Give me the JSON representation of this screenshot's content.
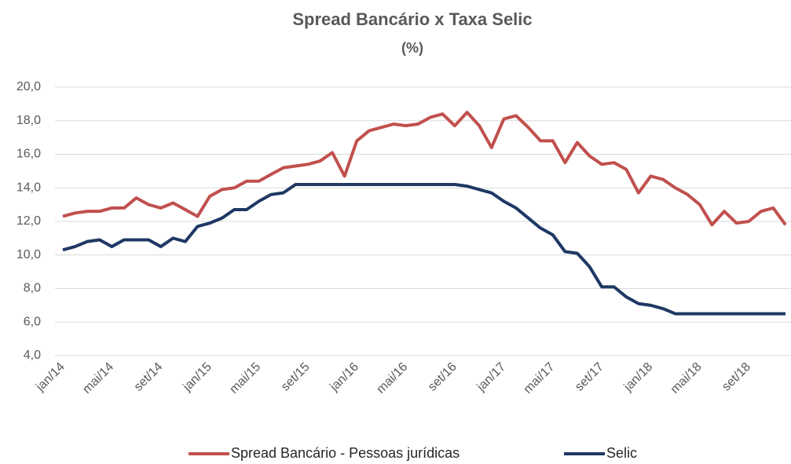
{
  "chart_data": {
    "type": "line",
    "title": "Spread Bancário x Taxa Selic",
    "subtitle": "(%)",
    "categories": [
      "jan/14",
      null,
      null,
      null,
      "mai/14",
      null,
      null,
      null,
      "set/14",
      null,
      null,
      null,
      "jan/15",
      null,
      null,
      null,
      "mai/15",
      null,
      null,
      null,
      "set/15",
      null,
      null,
      null,
      "jan/16",
      null,
      null,
      null,
      "mai/16",
      null,
      null,
      null,
      "set/16",
      null,
      null,
      null,
      "jan/17",
      null,
      null,
      null,
      "mai/17",
      null,
      null,
      null,
      "set/17",
      null,
      null,
      null,
      "jan/18",
      null,
      null,
      null,
      "mai/18",
      null,
      null,
      null,
      "set/18",
      null,
      null,
      null
    ],
    "series": [
      {
        "name": "Spread Bancário - Pessoas jurídicas",
        "color": "#c0504d",
        "values": [
          12.3,
          12.5,
          12.6,
          12.6,
          12.8,
          12.8,
          13.4,
          13.0,
          12.8,
          13.1,
          12.7,
          12.3,
          13.5,
          13.9,
          14.0,
          14.4,
          14.4,
          14.8,
          15.2,
          15.3,
          15.4,
          15.6,
          16.1,
          14.7,
          16.8,
          17.4,
          17.6,
          17.8,
          17.7,
          17.8,
          18.2,
          18.4,
          17.7,
          18.5,
          17.7,
          16.4,
          18.1,
          18.3,
          17.6,
          16.8,
          16.8,
          15.5,
          16.7,
          15.9,
          15.4,
          15.5,
          15.1,
          13.7,
          14.7,
          14.5,
          14.0,
          13.6,
          13.0,
          11.8,
          12.6,
          11.9,
          12.0,
          12.6,
          12.8,
          11.8
        ]
      },
      {
        "name": "Selic",
        "color": "#1f3864",
        "values": [
          10.3,
          10.5,
          10.8,
          10.9,
          10.5,
          10.9,
          10.9,
          10.9,
          10.5,
          11.0,
          10.8,
          11.7,
          11.9,
          12.2,
          12.7,
          12.7,
          13.2,
          13.6,
          13.7,
          14.2,
          14.2,
          14.2,
          14.2,
          14.2,
          14.2,
          14.2,
          14.2,
          14.2,
          14.2,
          14.2,
          14.2,
          14.2,
          14.2,
          14.1,
          13.9,
          13.7,
          13.2,
          12.8,
          12.2,
          11.6,
          11.2,
          10.2,
          10.1,
          9.3,
          8.1,
          8.1,
          7.5,
          7.1,
          7.0,
          6.8,
          6.5,
          6.5,
          6.5,
          6.5,
          6.5,
          6.5,
          6.5,
          6.5,
          6.5,
          6.5
        ]
      }
    ],
    "ylim": [
      4,
      20
    ],
    "yticks": [
      {
        "value": 4,
        "label": "4,0"
      },
      {
        "value": 6,
        "label": "6,0"
      },
      {
        "value": 8,
        "label": "8,0"
      },
      {
        "value": 10,
        "label": "10,0"
      },
      {
        "value": 12,
        "label": "12,0"
      },
      {
        "value": 14,
        "label": "14,0"
      },
      {
        "value": 16,
        "label": "16,0"
      },
      {
        "value": 18,
        "label": "18,0"
      },
      {
        "value": 20,
        "label": "20,0"
      }
    ],
    "grid": true,
    "legend": "bottom"
  }
}
